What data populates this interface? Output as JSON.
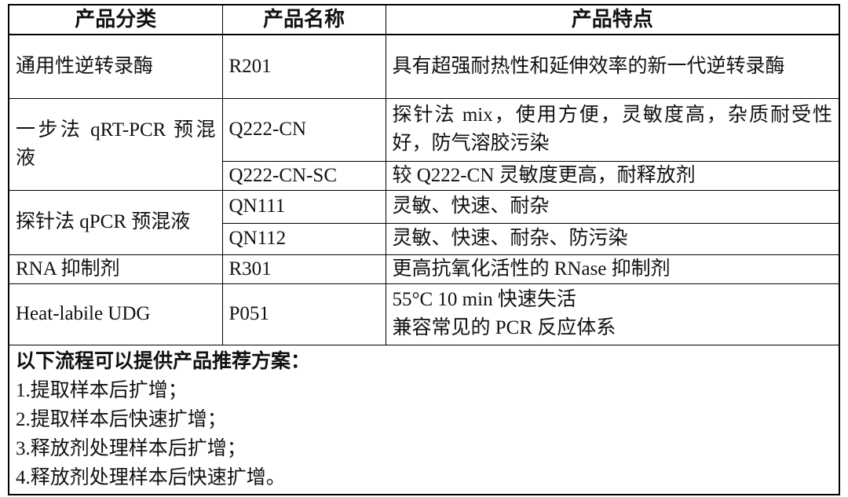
{
  "table": {
    "header": [
      "产品分类",
      "产品名称",
      "产品特点"
    ],
    "rows": [
      {
        "category": "通用性逆转录酶",
        "products": [
          {
            "name": "R201",
            "features": [
              "具有超强耐热性和延伸效率的新一代逆转录酶"
            ]
          }
        ]
      },
      {
        "category": "一步法 qRT-PCR 预混液",
        "products": [
          {
            "name": "Q222-CN",
            "features": [
              "探针法 mix，使用方便，灵敏度高，杂质耐受性好，防气溶胶污染"
            ]
          },
          {
            "name": "Q222-CN-SC",
            "features": [
              "较 Q222-CN 灵敏度更高，耐释放剂"
            ]
          }
        ]
      },
      {
        "category": "探针法 qPCR 预混液",
        "products": [
          {
            "name": "QN111",
            "features": [
              "灵敏、快速、耐杂"
            ]
          },
          {
            "name": "QN112",
            "features": [
              "灵敏、快速、耐杂、防污染"
            ]
          }
        ]
      },
      {
        "category": "RNA 抑制剂",
        "products": [
          {
            "name": "R301",
            "features": [
              "更高抗氧化活性的 RNase 抑制剂"
            ]
          }
        ]
      },
      {
        "category": "Heat-labile UDG",
        "products": [
          {
            "name": "P051",
            "features": [
              "55°C 10 min 快速失活",
              "兼容常见的 PCR 反应体系"
            ]
          }
        ]
      }
    ]
  },
  "notes": {
    "title": "以下流程可以提供产品推荐方案：",
    "items": [
      "1.提取样本后扩增；",
      "2.提取样本后快速扩增；",
      "3.释放剂处理样本后扩增；",
      "4.释放剂处理样本后快速扩增。"
    ]
  }
}
